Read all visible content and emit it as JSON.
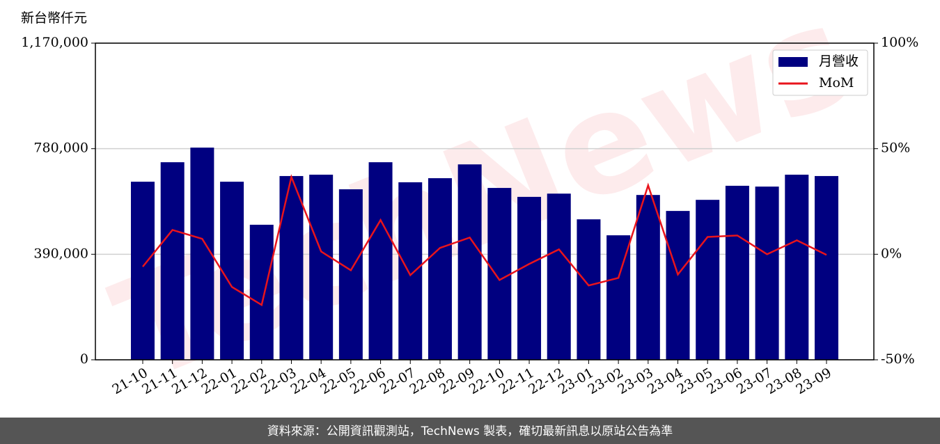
{
  "chart_data": {
    "type": "bar_line",
    "y_label": "新台幣仟元",
    "categories": [
      "21-10",
      "21-11",
      "21-12",
      "22-01",
      "22-02",
      "22-03",
      "22-04",
      "22-05",
      "22-06",
      "22-07",
      "22-08",
      "22-09",
      "22-10",
      "22-11",
      "22-12",
      "23-01",
      "23-02",
      "23-03",
      "23-04",
      "23-05",
      "23-06",
      "23-07",
      "23-08",
      "23-09"
    ],
    "series": [
      {
        "name": "月營收",
        "type": "bar",
        "color": "#000080",
        "values": [
          658000,
          730000,
          784000,
          658000,
          499000,
          679000,
          684000,
          630000,
          730000,
          656000,
          671000,
          722000,
          635000,
          602000,
          614000,
          519000,
          460000,
          609000,
          550000,
          591000,
          643000,
          640000,
          684000,
          679000
        ]
      },
      {
        "name": "MoM",
        "type": "line",
        "axis": "y2",
        "color": "#e8141c",
        "values": [
          -5.9,
          11.5,
          7.3,
          -15.5,
          -24,
          36.6,
          1.3,
          -7.6,
          16.2,
          -9.9,
          3,
          7.9,
          -12.2,
          -4.6,
          2.3,
          -14.8,
          -11.2,
          32.6,
          -9.6,
          8.2,
          8.9,
          0,
          6.6,
          -0.3
        ]
      }
    ],
    "ylim": [
      0,
      1170000
    ],
    "yticks": [
      0,
      {
        "value": 390000,
        "label": "390,000"
      },
      {
        "value": 780000,
        "label": "780,000"
      },
      {
        "value": 1170000,
        "label": "1,170,000"
      }
    ],
    "y2lim": [
      -50,
      100
    ],
    "y2ticks": [
      {
        "value": -50,
        "label": "-50%"
      },
      {
        "value": 0,
        "label": "0%"
      },
      {
        "value": 50,
        "label": "50%"
      },
      {
        "value": 100,
        "label": "100%"
      }
    ],
    "grid": true,
    "legend": "upper right",
    "watermark": "TechNews",
    "footer": "資料來源：公開資訊觀測站，TechNews 製表，確切最新訊息以原站公告為準"
  }
}
